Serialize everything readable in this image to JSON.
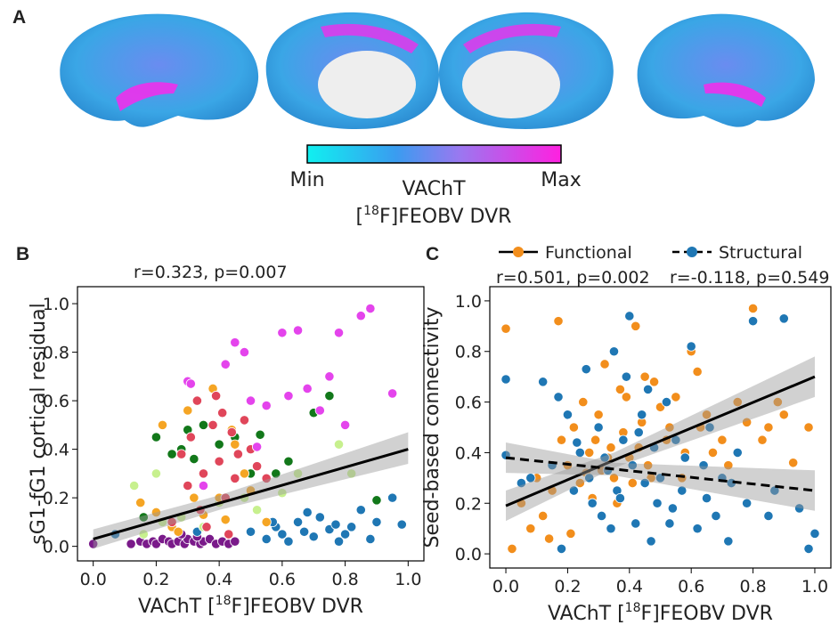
{
  "panel_a": {
    "label": "A",
    "colorbar": {
      "min": "Min",
      "max": "Max",
      "title": "VAChT",
      "subtitle_pre": "[",
      "subtitle_sup": "18",
      "subtitle_post": "F]FEOBV DVR"
    }
  },
  "chart_data": [
    {
      "type": "scatter",
      "panel_label": "B",
      "annotation": "r=0.323, p=0.007",
      "ylabel": "sG1-fG1 cortical residual",
      "xlabel": {
        "pre": "VAChT [",
        "sup": "18",
        "post": "F]FEOBV DVR"
      },
      "xlim": [
        -0.05,
        1.05
      ],
      "ylim": [
        -0.06,
        1.07
      ],
      "xticks": [
        {
          "value": 0,
          "label": "0.0"
        },
        0.2,
        0.4,
        0.6,
        0.8,
        {
          "value": 1,
          "label": "1.0"
        }
      ],
      "yticks": [
        {
          "value": 0,
          "label": "0.0"
        },
        0.2,
        0.4,
        0.6,
        0.8,
        {
          "value": 1,
          "label": "1.0"
        }
      ],
      "series": [
        {
          "color": "#7a1a8a",
          "x": [
            0.0,
            0.12,
            0.15,
            0.17,
            0.19,
            0.2,
            0.22,
            0.24,
            0.25,
            0.27,
            0.29,
            0.3,
            0.32,
            0.34,
            0.35,
            0.37,
            0.39,
            0.41,
            0.43,
            0.45,
            0.28,
            0.33
          ],
          "y": [
            0.01,
            0.01,
            0.02,
            0.01,
            0.02,
            0.01,
            0.03,
            0.02,
            0.01,
            0.02,
            0.01,
            0.03,
            0.02,
            0.01,
            0.02,
            0.03,
            0.01,
            0.02,
            0.01,
            0.02,
            0.05,
            0.04
          ]
        },
        {
          "color": "#1f77b4",
          "x": [
            0.07,
            0.25,
            0.33,
            0.5,
            0.55,
            0.58,
            0.6,
            0.62,
            0.65,
            0.67,
            0.7,
            0.72,
            0.75,
            0.77,
            0.8,
            0.82,
            0.85,
            0.88,
            0.9,
            0.95,
            0.98,
            0.78,
            0.68,
            0.57
          ],
          "y": [
            0.05,
            0.08,
            0.06,
            0.06,
            0.03,
            0.08,
            0.05,
            0.02,
            0.1,
            0.06,
            0.04,
            0.12,
            0.07,
            0.09,
            0.05,
            0.08,
            0.15,
            0.03,
            0.1,
            0.2,
            0.09,
            0.02,
            0.14,
            0.1
          ]
        },
        {
          "color": "#c7f08e",
          "x": [
            0.13,
            0.16,
            0.2,
            0.22,
            0.28,
            0.35,
            0.4,
            0.48,
            0.52,
            0.6,
            0.65,
            0.78,
            0.82
          ],
          "y": [
            0.25,
            0.05,
            0.3,
            0.1,
            0.12,
            0.08,
            0.18,
            0.2,
            0.15,
            0.22,
            0.3,
            0.42,
            0.3
          ]
        },
        {
          "color": "#12781a",
          "x": [
            0.16,
            0.2,
            0.25,
            0.28,
            0.3,
            0.32,
            0.35,
            0.4,
            0.45,
            0.5,
            0.53,
            0.58,
            0.62,
            0.7,
            0.75,
            0.9
          ],
          "y": [
            0.12,
            0.45,
            0.38,
            0.4,
            0.48,
            0.36,
            0.5,
            0.42,
            0.45,
            0.3,
            0.46,
            0.3,
            0.35,
            0.55,
            0.62,
            0.19
          ]
        },
        {
          "color": "#f5a524",
          "x": [
            0.15,
            0.2,
            0.22,
            0.25,
            0.3,
            0.32,
            0.35,
            0.38,
            0.4,
            0.42,
            0.45,
            0.48,
            0.5,
            0.55,
            0.27,
            0.44
          ],
          "y": [
            0.18,
            0.14,
            0.5,
            0.08,
            0.56,
            0.2,
            0.13,
            0.65,
            0.2,
            0.11,
            0.42,
            0.3,
            0.23,
            0.1,
            0.06,
            0.48
          ]
        },
        {
          "color": "#e0465a",
          "x": [
            0.25,
            0.28,
            0.3,
            0.31,
            0.33,
            0.35,
            0.36,
            0.38,
            0.4,
            0.41,
            0.42,
            0.44,
            0.45,
            0.46,
            0.48,
            0.5,
            0.52,
            0.55,
            0.34,
            0.39,
            0.43
          ],
          "y": [
            0.1,
            0.38,
            0.25,
            0.45,
            0.6,
            0.3,
            0.08,
            0.5,
            0.35,
            0.55,
            0.2,
            0.47,
            0.28,
            0.38,
            0.52,
            0.4,
            0.33,
            0.28,
            0.15,
            0.62,
            0.05
          ]
        },
        {
          "color": "#e444ec",
          "x": [
            0.3,
            0.31,
            0.35,
            0.42,
            0.45,
            0.48,
            0.5,
            0.55,
            0.6,
            0.65,
            0.68,
            0.72,
            0.75,
            0.78,
            0.8,
            0.85,
            0.88,
            0.95,
            0.52,
            0.62
          ],
          "y": [
            0.68,
            0.67,
            0.25,
            0.75,
            0.84,
            0.8,
            0.6,
            0.58,
            0.88,
            0.89,
            0.65,
            0.56,
            0.7,
            0.88,
            0.5,
            0.95,
            0.98,
            0.63,
            0.41,
            0.62
          ]
        }
      ],
      "fits": [
        {
          "color": "#000000",
          "dashed": false,
          "x": [
            0,
            0.4,
            1
          ],
          "y": [
            0.03,
            0.178,
            0.4
          ],
          "ci_lower": [
            -0.01,
            0.15,
            0.34
          ],
          "ci_upper": [
            0.07,
            0.21,
            0.47
          ]
        }
      ]
    },
    {
      "type": "scatter",
      "panel_label": "C",
      "ylabel": "Seed-based connectivity",
      "xlabel": {
        "pre": "VAChT [",
        "sup": "18",
        "post": "F]FEOBV DVR"
      },
      "xlim": [
        -0.052,
        1.052
      ],
      "ylim": [
        -0.056,
        1.056
      ],
      "xticks": [
        {
          "value": 0,
          "label": "0.0"
        },
        0.2,
        0.4,
        0.6,
        0.8,
        {
          "value": 1,
          "label": "1.0"
        }
      ],
      "yticks": [
        {
          "value": 0,
          "label": "0.0"
        },
        0.2,
        0.4,
        0.6,
        0.8,
        {
          "value": 1,
          "label": "1.0"
        }
      ],
      "series": [
        {
          "name": "Functional",
          "stat": "r=0.501, p=0.002",
          "color": "#f28e1c",
          "x": [
            0.0,
            0.02,
            0.05,
            0.08,
            0.1,
            0.12,
            0.15,
            0.17,
            0.18,
            0.2,
            0.22,
            0.24,
            0.25,
            0.27,
            0.28,
            0.3,
            0.31,
            0.32,
            0.34,
            0.35,
            0.37,
            0.38,
            0.4,
            0.42,
            0.44,
            0.45,
            0.47,
            0.5,
            0.52,
            0.55,
            0.58,
            0.6,
            0.63,
            0.65,
            0.7,
            0.75,
            0.8,
            0.85,
            0.9,
            0.98,
            0.26,
            0.29,
            0.33,
            0.36,
            0.39,
            0.41,
            0.43,
            0.46,
            0.48,
            0.53,
            0.57,
            0.62,
            0.67,
            0.72,
            0.78,
            0.83,
            0.88,
            0.93,
            0.21,
            0.14
          ],
          "y": [
            0.89,
            0.02,
            0.2,
            0.1,
            0.3,
            0.15,
            0.25,
            0.92,
            0.45,
            0.35,
            0.5,
            0.28,
            0.6,
            0.4,
            0.22,
            0.55,
            0.33,
            0.75,
            0.42,
            0.3,
            0.65,
            0.48,
            0.38,
            0.9,
            0.52,
            0.7,
            0.3,
            0.58,
            0.45,
            0.62,
            0.4,
            0.8,
            0.5,
            0.55,
            0.45,
            0.6,
            0.97,
            0.5,
            0.55,
            0.5,
            0.32,
            0.45,
            0.38,
            0.2,
            0.62,
            0.28,
            0.42,
            0.35,
            0.68,
            0.5,
            0.3,
            0.72,
            0.4,
            0.35,
            0.52,
            0.45,
            0.6,
            0.36,
            0.08,
            0.06
          ]
        },
        {
          "name": "Structural",
          "stat": "r=-0.118, p=0.549",
          "color": "#1f77b4",
          "x": [
            0.0,
            0.0,
            0.05,
            0.08,
            0.12,
            0.15,
            0.17,
            0.2,
            0.22,
            0.24,
            0.26,
            0.28,
            0.3,
            0.31,
            0.33,
            0.35,
            0.36,
            0.38,
            0.4,
            0.41,
            0.42,
            0.44,
            0.45,
            0.47,
            0.48,
            0.5,
            0.52,
            0.54,
            0.55,
            0.57,
            0.6,
            0.62,
            0.64,
            0.65,
            0.68,
            0.7,
            0.72,
            0.75,
            0.78,
            0.8,
            0.85,
            0.87,
            0.9,
            0.95,
            0.98,
            1.0,
            0.32,
            0.37,
            0.43,
            0.46,
            0.53,
            0.58,
            0.27,
            0.34,
            0.39,
            0.66,
            0.73,
            0.18,
            0.23,
            0.49
          ],
          "y": [
            0.69,
            0.39,
            0.28,
            0.3,
            0.68,
            0.35,
            0.62,
            0.55,
            0.25,
            0.4,
            0.73,
            0.2,
            0.5,
            0.15,
            0.33,
            0.8,
            0.25,
            0.45,
            0.94,
            0.35,
            0.12,
            0.55,
            0.28,
            0.05,
            0.42,
            0.3,
            0.6,
            0.18,
            0.45,
            0.25,
            0.82,
            0.1,
            0.35,
            0.22,
            0.15,
            0.3,
            0.05,
            0.4,
            0.2,
            0.92,
            0.15,
            0.25,
            0.93,
            0.18,
            0.02,
            0.08,
            0.38,
            0.22,
            0.48,
            0.65,
            0.12,
            0.38,
            0.3,
            0.1,
            0.7,
            0.5,
            0.28,
            0.02,
            0.44,
            0.2
          ]
        }
      ],
      "fits": [
        {
          "color": "#000000",
          "dashed": false,
          "x": [
            0,
            0.35,
            1
          ],
          "y": [
            0.19,
            0.37,
            0.7
          ],
          "ci_lower": [
            0.13,
            0.34,
            0.62
          ],
          "ci_upper": [
            0.25,
            0.4,
            0.78
          ]
        },
        {
          "color": "#000000",
          "dashed": true,
          "x": [
            0,
            0.35,
            1
          ],
          "y": [
            0.38,
            0.335,
            0.25
          ],
          "ci_lower": [
            0.32,
            0.31,
            0.17
          ],
          "ci_upper": [
            0.44,
            0.36,
            0.33
          ]
        }
      ]
    }
  ]
}
